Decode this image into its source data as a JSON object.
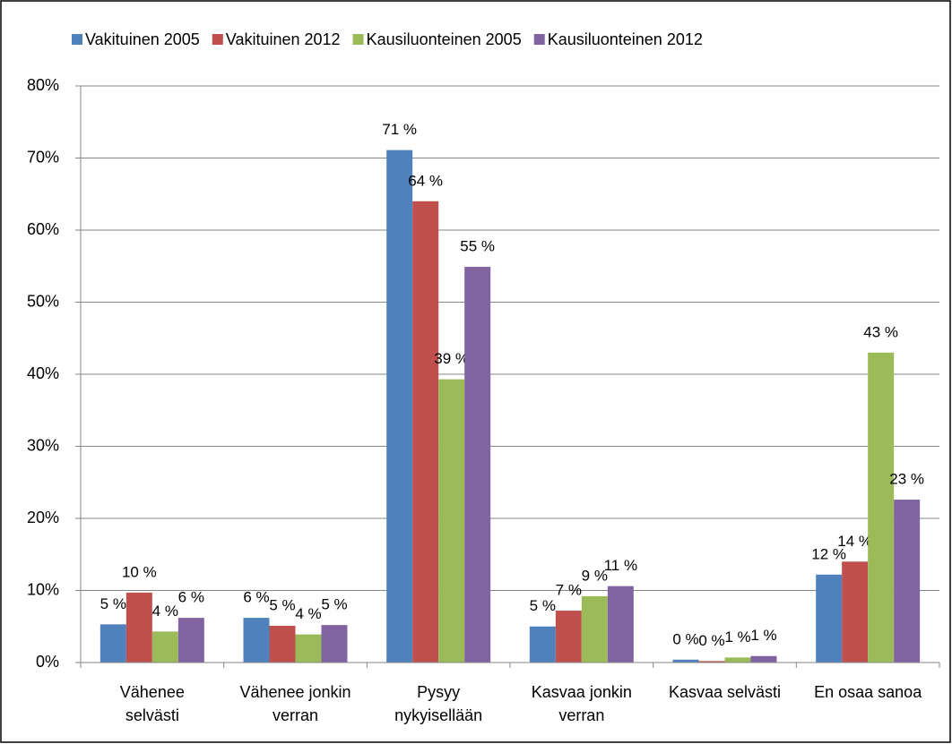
{
  "chart_data": {
    "type": "bar",
    "categories": [
      "Vähenee\nselvästi",
      "Vähenee jonkin\nverran",
      "Pysyy\nnykyisellään",
      "Kasvaa jonkin\nverran",
      "Kasvaa selvästi",
      "En osaa sanoa"
    ],
    "series": [
      {
        "name": "Vakituinen 2005",
        "color": "#4f81bd",
        "values": [
          5.3,
          6.2,
          71.1,
          5.0,
          0.4,
          12.2
        ],
        "value_labels": [
          "5 %",
          "6 %",
          "71 %",
          "5 %",
          "0 %",
          "12 %"
        ]
      },
      {
        "name": "Vakituinen 2012",
        "color": "#c0504d",
        "values": [
          9.7,
          5.1,
          64.0,
          7.2,
          0.2,
          14.0
        ],
        "value_labels": [
          "10 %",
          "5 %",
          "64 %",
          "7 %",
          "0 %",
          "14 %"
        ]
      },
      {
        "name": "Kausiluonteinen 2005",
        "color": "#9bbb59",
        "values": [
          4.3,
          3.9,
          39.3,
          9.2,
          0.7,
          43.0
        ],
        "value_labels": [
          "4 %",
          "4 %",
          "39 %",
          "9 %",
          "1 %",
          "43 %"
        ]
      },
      {
        "name": "Kausiluonteinen 2012",
        "color": "#8064a2",
        "values": [
          6.2,
          5.2,
          54.9,
          10.6,
          0.9,
          22.6
        ],
        "value_labels": [
          "6 %",
          "5 %",
          "55 %",
          "11 %",
          "1 %",
          "23 %"
        ]
      }
    ],
    "ylim": [
      0,
      80
    ],
    "yticks": [
      {
        "value": 0,
        "label": "0%"
      },
      {
        "value": 10,
        "label": "10%"
      },
      {
        "value": 20,
        "label": "20%"
      },
      {
        "value": 30,
        "label": "30%"
      },
      {
        "value": 40,
        "label": "40%"
      },
      {
        "value": 50,
        "label": "50%"
      },
      {
        "value": 60,
        "label": "60%"
      },
      {
        "value": 70,
        "label": "70%"
      },
      {
        "value": 80,
        "label": "80%"
      }
    ],
    "grid": true,
    "legend": "top"
  }
}
